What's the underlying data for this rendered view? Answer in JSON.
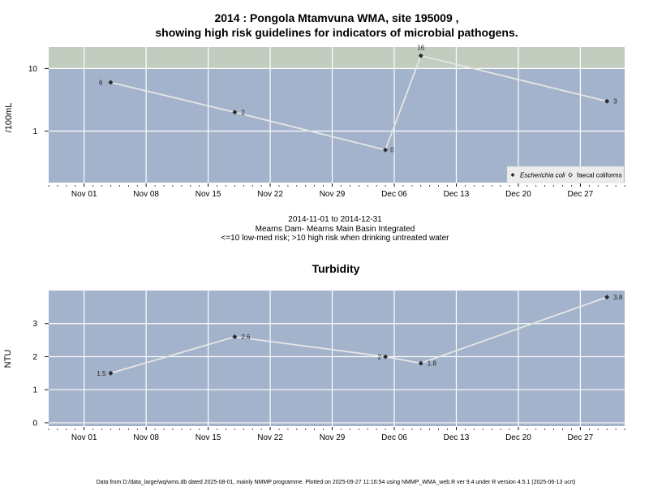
{
  "chart_data": [
    {
      "type": "line",
      "title": "2014 : Pongola Mtamvuna WMA, site 195009 ,",
      "subtitle": "showing high risk guidelines for indicators of microbial pathogens.",
      "ylabel": "/100mL",
      "yscale": "log",
      "ylim": [
        0.15,
        22
      ],
      "high_risk_threshold": 10,
      "yticks": [
        1,
        10
      ],
      "yticklabels": [
        "1",
        "10"
      ],
      "xlim": [
        "2014-10-28",
        "2015-01-01"
      ],
      "xticks": [
        "2014-11-01",
        "2014-11-08",
        "2014-11-15",
        "2014-11-22",
        "2014-11-29",
        "2014-12-06",
        "2014-12-13",
        "2014-12-20",
        "2014-12-27"
      ],
      "xticklabels": [
        "Nov 01",
        "Nov 08",
        "Nov 15",
        "Nov 22",
        "Nov 29",
        "Dec 06",
        "Dec 13",
        "Dec 20",
        "Dec 27"
      ],
      "series": [
        {
          "name": "Escherichia coli",
          "x": [
            "2014-11-04",
            "2014-11-18",
            "2014-12-05",
            "2014-12-09",
            "2014-12-30"
          ],
          "y": [
            6,
            2,
            0.5,
            16,
            3
          ],
          "labels": [
            "6",
            "2",
            "0",
            "16",
            "3"
          ]
        }
      ],
      "legend": {
        "position": "bottom-right",
        "entries": [
          "Escherichia coli",
          "faecal coliforms"
        ]
      },
      "grid": true,
      "colors": {
        "panel": "#a3b3cb",
        "high_risk_band": "#c2cdbf",
        "line": "#e6e6e6",
        "marker": "#2b2b2b",
        "grid": "#ffffff"
      },
      "notes": [
        "2014-11-01 to 2014-12-31",
        "Mearns Dam- Mearns Main Basin Integrated",
        "<=10 low-med risk; >10 high risk when drinking untreated water"
      ]
    },
    {
      "type": "line",
      "title": "Turbidity",
      "ylabel": "NTU",
      "ylim": [
        -0.1,
        4.0
      ],
      "yticks": [
        0,
        1,
        2,
        3
      ],
      "yticklabels": [
        "0",
        "1",
        "2",
        "3"
      ],
      "xlim": [
        "2014-10-28",
        "2015-01-01"
      ],
      "xticks": [
        "2014-11-01",
        "2014-11-08",
        "2014-11-15",
        "2014-11-22",
        "2014-11-29",
        "2014-12-06",
        "2014-12-13",
        "2014-12-20",
        "2014-12-27"
      ],
      "xticklabels": [
        "Nov 01",
        "Nov 08",
        "Nov 15",
        "Nov 22",
        "Nov 29",
        "Dec 06",
        "Dec 13",
        "Dec 20",
        "Dec 27"
      ],
      "series": [
        {
          "x": [
            "2014-11-04",
            "2014-11-18",
            "2014-12-05",
            "2014-12-09",
            "2014-12-30"
          ],
          "y": [
            1.5,
            2.6,
            2.0,
            1.8,
            3.8
          ],
          "labels": [
            "1.5",
            "2.6",
            "2",
            "1.8",
            "3.8"
          ]
        }
      ],
      "grid": true,
      "colors": {
        "panel": "#a3b3cb",
        "line": "#e6e6e6",
        "marker": "#2b2b2b",
        "grid": "#ffffff"
      }
    }
  ],
  "footer": "Data from D:/data_large/wq/wms.db dated 2025-08-01, mainly NMMP programme. Plotted on 2025-09-27 11:16:54 using NMMP_WMA_web.R ver 9.4 under R version 4.5.1 (2025-06-13 ucrt)"
}
